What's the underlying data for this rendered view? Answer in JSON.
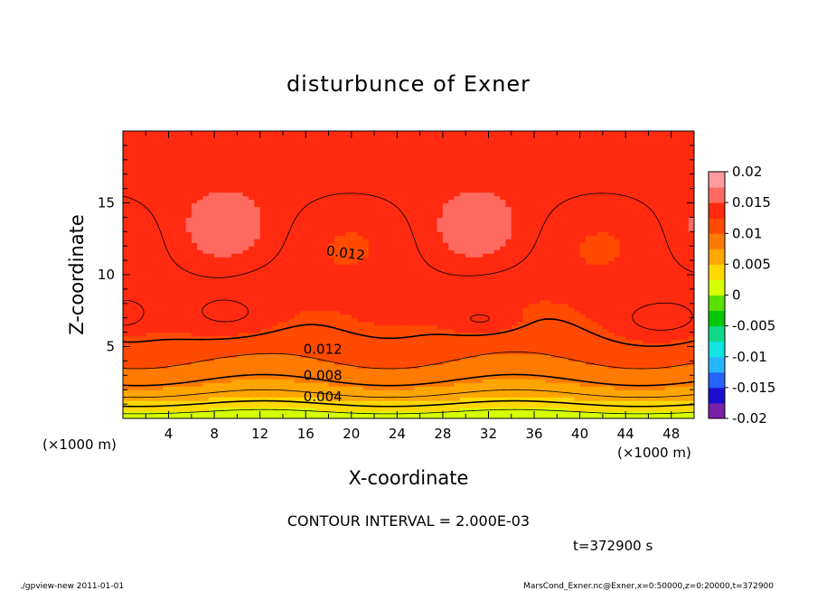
{
  "chart_data": {
    "type": "contour",
    "title": "disturbunce of Exner",
    "xlabel": "X-coordinate",
    "ylabel": "Z-coordinate",
    "x_unit_left": "(×1000 m)",
    "x_unit_right": "(×1000 m)",
    "xlim": [
      0,
      50
    ],
    "ylim": [
      0,
      20
    ],
    "x_ticks": [
      4,
      8,
      12,
      16,
      20,
      24,
      28,
      32,
      36,
      40,
      44,
      48
    ],
    "y_ticks": [
      5,
      10,
      15
    ],
    "contour_interval_text": "CONTOUR INTERVAL = 2.000E-03",
    "time_text": "t=372900 s",
    "footer_left": "./gpview-new  2011-01-01",
    "footer_right": "MarsCond_Exner.nc@Exner,x=0:50000,z=0:20000,t=372900",
    "contour_labels": [
      {
        "text": "0.012",
        "x": 19.5,
        "z": 11.5
      },
      {
        "text": "0.012",
        "x": 17.5,
        "z": 4.8
      },
      {
        "text": "0.008",
        "x": 17.5,
        "z": 3.0
      },
      {
        "text": "0.004",
        "x": 17.5,
        "z": 1.5
      }
    ],
    "levels": [
      -0.02,
      -0.0175,
      -0.015,
      -0.0125,
      -0.01,
      -0.0075,
      -0.005,
      -0.0025,
      0,
      0.0025,
      0.005,
      0.0075,
      0.01,
      0.0125,
      0.015,
      0.0175,
      0.02
    ],
    "colorbar": {
      "tick_labels": [
        "0.02",
        "0.015",
        "0.01",
        "0.005",
        "0",
        "-0.005",
        "-0.01",
        "-0.015",
        "-0.02"
      ],
      "colors_bottom_to_top": [
        "#7a1fa8",
        "#1a0fd0",
        "#2563ff",
        "#27b7ff",
        "#12e3e3",
        "#10d98a",
        "#06c806",
        "#5adf00",
        "#d6ff00",
        "#ffd800",
        "#ffa500",
        "#ff7a00",
        "#ff4a00",
        "#ff2a10",
        "#ff6a60",
        "#ff9aa0"
      ]
    }
  }
}
